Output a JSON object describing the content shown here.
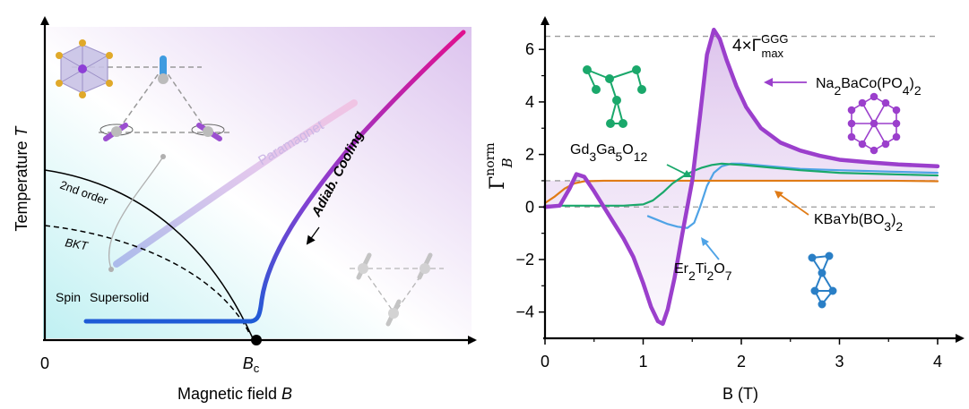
{
  "chart_data": [
    {
      "type": "line",
      "panel": "left",
      "xlabel": "Magnetic field",
      "xlabel_var": "B",
      "ylabel": "Temperature",
      "ylabel_var": "T",
      "x_tick_zero": "0",
      "x_tick_bc": "B",
      "x_tick_bc_sub": "c",
      "region_labels": {
        "paramagnet": "Paramagnet",
        "second_order": "2nd order",
        "bkt": "BKT",
        "spin": "Spin",
        "supersolid": "Supersolid",
        "cooling": "Adiab. Cooling"
      },
      "colors": {
        "cooling_low": "#1f5bd6",
        "cooling_mid": "#8a3fd1",
        "cooling_high": "#e0108f",
        "paramagnet_band": "#c9b7e8"
      }
    },
    {
      "type": "line",
      "panel": "right",
      "xlabel": "B (T)",
      "ylabel": "Γ",
      "ylabel_sub": "B",
      "ylabel_sup": "norm",
      "xlim": [
        0,
        4
      ],
      "ylim": [
        -5,
        7.2
      ],
      "xticks": [
        "0",
        "1",
        "2",
        "3",
        "4"
      ],
      "yticks": [
        "−4",
        "−2",
        "0",
        "2",
        "4",
        "6"
      ],
      "xtick_values": [
        0,
        1,
        2,
        3,
        4
      ],
      "ytick_values": [
        -4,
        -2,
        0,
        2,
        4,
        6
      ],
      "reference_lines": [
        {
          "y": 6.5,
          "label_pre": "4×Γ",
          "label_sup": "GGG",
          "label_sub": "max"
        },
        {
          "y": 1.0
        },
        {
          "y": 0.0
        }
      ],
      "series": [
        {
          "label_html": "Na<tspan baseline-shift='sub' font-size='14'>2</tspan>BaCo(PO<tspan baseline-shift='sub' font-size='14'>4</tspan>)<tspan baseline-shift='sub' font-size='14'>2</tspan>",
          "color": "#9b3fcc",
          "x": [
            0,
            0.15,
            0.25,
            0.32,
            0.4,
            0.5,
            0.6,
            0.7,
            0.8,
            0.9,
            1.0,
            1.08,
            1.15,
            1.2,
            1.25,
            1.32,
            1.4,
            1.5,
            1.58,
            1.65,
            1.72,
            1.78,
            1.85,
            1.95,
            2.05,
            2.2,
            2.4,
            2.6,
            2.8,
            3.0,
            3.3,
            3.6,
            4.0
          ],
          "y": [
            0.0,
            0.05,
            0.7,
            1.25,
            1.15,
            0.6,
            0.0,
            -0.6,
            -1.2,
            -1.9,
            -2.9,
            -3.8,
            -4.35,
            -4.45,
            -3.9,
            -2.7,
            -1.0,
            1.0,
            3.5,
            5.8,
            6.75,
            6.4,
            5.6,
            4.6,
            3.8,
            3.0,
            2.45,
            2.15,
            1.95,
            1.8,
            1.7,
            1.62,
            1.55
          ]
        },
        {
          "label_html": "Gd<tspan baseline-shift='sub' font-size='14'>3</tspan>Ga<tspan baseline-shift='sub' font-size='14'>5</tspan>O<tspan baseline-shift='sub' font-size='14'>12</tspan>",
          "color": "#1aa86b",
          "x": [
            0,
            0.2,
            0.4,
            0.6,
            0.8,
            1.0,
            1.1,
            1.2,
            1.3,
            1.4,
            1.5,
            1.6,
            1.7,
            1.8,
            2.0,
            2.3,
            2.6,
            3.0,
            3.5,
            4.0
          ],
          "y": [
            0.05,
            0.05,
            0.05,
            0.05,
            0.05,
            0.1,
            0.25,
            0.55,
            0.9,
            1.15,
            1.35,
            1.5,
            1.6,
            1.65,
            1.6,
            1.5,
            1.4,
            1.3,
            1.25,
            1.2
          ]
        },
        {
          "label_html": "KBaYb(BO<tspan baseline-shift='sub' font-size='14'>3</tspan>)<tspan baseline-shift='sub' font-size='14'>2</tspan>",
          "color": "#e07b16",
          "x": [
            0,
            0.1,
            0.2,
            0.3,
            0.4,
            0.6,
            1.0,
            1.5,
            2.0,
            2.5,
            3.0,
            3.5,
            4.0
          ],
          "y": [
            0.15,
            0.4,
            0.7,
            0.9,
            0.98,
            1.0,
            1.0,
            1.0,
            1.0,
            1.0,
            1.0,
            1.0,
            0.98
          ]
        },
        {
          "label_html": "Er<tspan baseline-shift='sub' font-size='14'>2</tspan>Ti<tspan baseline-shift='sub' font-size='14'>2</tspan>O<tspan baseline-shift='sub' font-size='14'>7</tspan>",
          "color": "#4fa3e6",
          "x": [
            1.05,
            1.15,
            1.25,
            1.35,
            1.45,
            1.52,
            1.58,
            1.65,
            1.72,
            1.8,
            1.9,
            2.0,
            2.3,
            2.6,
            3.0,
            3.5,
            4.0
          ],
          "y": [
            -0.35,
            -0.5,
            -0.65,
            -0.75,
            -0.8,
            -0.6,
            0.0,
            0.8,
            1.3,
            1.55,
            1.65,
            1.65,
            1.55,
            1.45,
            1.4,
            1.35,
            1.3
          ]
        }
      ]
    }
  ]
}
